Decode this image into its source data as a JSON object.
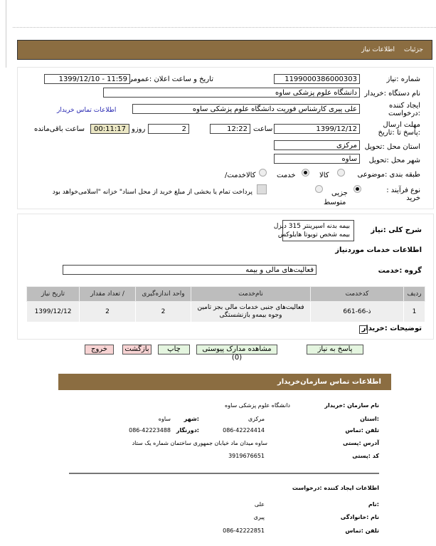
{
  "header": {
    "tabs": [
      "جزئیات",
      "اطلاعات نیاز"
    ]
  },
  "form": {
    "need_number_label": "شماره :نیاز",
    "need_number": "1199000386000303",
    "announce_label": "تاریخ و ساعت اعلان :عمومی",
    "announce": "1399/12/10 - 11:59",
    "buyer_label": "نام دستگاه :خریدار",
    "buyer": "دانشگاه علوم پزشکی ساوه",
    "creator_label": "ایجاد کننده :درخواست",
    "creator": "علی پیری کارشناس فوریت دانشگاه علوم پزشکی ساوه",
    "contact_link": "اطلاعات تماس خریدار",
    "deadline_label": "مهلت ارسال :پاسخ تا :تاریخ",
    "deadline_date": "1399/12/12",
    "time_label": "ساعت",
    "deadline_time": "12:22",
    "days": "2",
    "days_label": "روزو",
    "remaining": "00:11:17",
    "remaining_label": "ساعت باقی‌مانده",
    "province_label": "استان محل :تحویل",
    "province": "مرکزی",
    "city_label": "شهر محل :تحویل",
    "city": "ساوه",
    "category_label": "طبقه بندی :موضوعی",
    "category_options": [
      "کالا",
      "خدمت",
      "/کالاخدمت"
    ],
    "category_selected": "خدمت",
    "process_label": "نوع فرآیند : خرید",
    "process_options": [
      "جزیی",
      "متوسط"
    ],
    "process_selected": "جزیی",
    "treasury_text": "پرداخت تمام یا بخشی از مبلغ خرید از محل اسناد\" خزانه \"اسلامی‌خواهد بود"
  },
  "details": {
    "desc_label": "شرح کلی :نیاز",
    "desc": [
      "بیمه بدنه اسپرینتر 315 دیزل",
      "بیمه شخص تویوتا هایلوکس"
    ],
    "services_title": "اطلاعات خدمات موردنیاز",
    "group_label": "گروه :خدمت",
    "group": "فعالیت‌های مالی و بیمه",
    "table": {
      "headers": [
        "ردیف",
        "کدخدمت",
        "نام‌خدمت",
        "واحد اندازه‌گیری",
        "/ تعداد مقدار",
        "تاریخ نیاز"
      ],
      "rows": [
        [
          "1",
          "ذ-66-661",
          "فعالیت‌های جنبی خدمات مالی بجز تامین وجوه بیمه‌و بازنشستگی",
          "2",
          "2",
          "1399/12/12"
        ]
      ]
    },
    "notes_label": "توضیحات :خریدار"
  },
  "buttons": {
    "reply": "پاسخ به نیاز",
    "attachments": "مشاهده مدارک پیوستی (0)",
    "print": "چاپ",
    "back": "بازگشت",
    "exit": "خروج"
  },
  "contact": {
    "title": "اطلاعات تماس سازمان‌خریدار",
    "org_label": "نام سازمان :خریدار",
    "org": "دانشگاه علوم پزشکی ساوه",
    "province_label": ":استان",
    "province": "مرکزی",
    "city_label": ":شهر",
    "city": "ساوه",
    "phone_label": "تلفن :تماس",
    "phone": "086-42224414",
    "fax_label": ":دورنگار",
    "fax": "086-42223488",
    "address_label": "آدرس :پستی",
    "address": "ساوه میدان ماد خیابان جمهوری ساختمان شماره یک ستاد",
    "postal_label": "کد :پستی",
    "postal": "3919676651",
    "creator_title": "اطلاعات ایجاد کننده :درخواست",
    "first_label": ":نام",
    "first": "علی",
    "last_label": "نام :خانوادگی",
    "last": "پیری",
    "cphone_label": "تلفن :تماس",
    "cphone": "086-42222851"
  },
  "colors": {
    "header": "#8b6d41",
    "timer_bg": "#ebe7c4"
  }
}
